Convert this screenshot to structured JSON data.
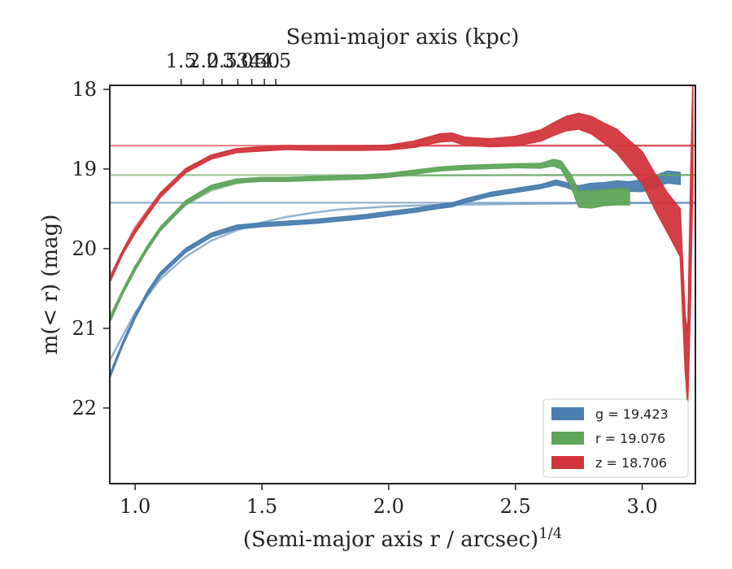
{
  "chart_data": {
    "type": "line",
    "title": "",
    "xlabel": "(Semi-major axis r / arcsec)",
    "xlabel_superscript": "1/4",
    "ylabel": "m(< r) (mag)",
    "top_xlabel": "Semi-major axis (kpc)",
    "xlim": [
      0.9,
      3.21
    ],
    "ylim": [
      22.95,
      17.95
    ],
    "y_inverted": true,
    "x_ticks": [
      "1.0",
      "1.5",
      "2.0",
      "2.5",
      "3.0"
    ],
    "y_ticks": [
      "18",
      "19",
      "20",
      "21",
      "22"
    ],
    "top_ticks": [
      "1.5",
      "2.0",
      "2.5",
      "3.0",
      "3.5",
      "4.0",
      "4.5"
    ],
    "grid": false,
    "legend_position": "lower-right",
    "legend": [
      {
        "label": "g = 19.423",
        "color": "#4a7eb0"
      },
      {
        "label": "r = 19.076",
        "color": "#5fa55a"
      },
      {
        "label": "z = 18.706",
        "color": "#d2363c"
      }
    ],
    "series": [
      {
        "name": "g = 19.423",
        "color": "#4a7eb0",
        "asymptote": 19.423,
        "band": {
          "x": [
            0.9,
            0.95,
            1.0,
            1.05,
            1.1,
            1.2,
            1.3,
            1.4,
            1.5,
            1.6,
            1.7,
            1.8,
            1.9,
            2.0,
            2.1,
            2.2,
            2.25,
            2.3,
            2.4,
            2.5,
            2.6,
            2.66,
            2.7,
            2.75,
            2.8,
            2.85,
            2.9,
            2.95,
            3.0,
            3.05,
            3.1,
            3.15
          ],
          "y": [
            21.6,
            21.2,
            20.85,
            20.55,
            20.32,
            20.02,
            19.83,
            19.73,
            19.7,
            19.68,
            19.66,
            19.63,
            19.6,
            19.56,
            19.52,
            19.47,
            19.45,
            19.4,
            19.32,
            19.27,
            19.22,
            19.17,
            19.2,
            19.25,
            19.23,
            19.22,
            19.2,
            19.22,
            19.21,
            19.16,
            19.1,
            19.12
          ],
          "width": [
            0.05,
            0.05,
            0.05,
            0.05,
            0.05,
            0.05,
            0.05,
            0.05,
            0.05,
            0.05,
            0.05,
            0.05,
            0.05,
            0.05,
            0.05,
            0.05,
            0.05,
            0.05,
            0.05,
            0.05,
            0.05,
            0.06,
            0.06,
            0.08,
            0.1,
            0.1,
            0.1,
            0.12,
            0.15,
            0.15,
            0.15,
            0.15
          ]
        },
        "model": {
          "x": [
            0.9,
            1.0,
            1.1,
            1.2,
            1.3,
            1.4,
            1.5,
            1.6,
            1.7,
            1.8,
            2.0,
            2.2,
            2.5,
            2.8,
            3.0,
            3.21
          ],
          "y": [
            21.4,
            20.8,
            20.38,
            20.1,
            19.9,
            19.77,
            19.67,
            19.6,
            19.55,
            19.51,
            19.47,
            19.45,
            19.44,
            19.43,
            19.427,
            19.424
          ]
        }
      },
      {
        "name": "r = 19.076",
        "color": "#5fa55a",
        "asymptote": 19.076,
        "band": {
          "x": [
            0.9,
            0.95,
            1.0,
            1.05,
            1.1,
            1.2,
            1.3,
            1.4,
            1.5,
            1.6,
            1.7,
            1.8,
            1.9,
            2.0,
            2.1,
            2.2,
            2.3,
            2.4,
            2.5,
            2.6,
            2.65,
            2.68,
            2.72,
            2.75,
            2.8,
            2.85,
            2.9,
            2.95
          ],
          "y": [
            20.9,
            20.55,
            20.25,
            19.98,
            19.75,
            19.42,
            19.23,
            19.15,
            19.13,
            19.13,
            19.12,
            19.11,
            19.1,
            19.08,
            19.04,
            19.0,
            18.98,
            18.97,
            18.96,
            18.96,
            18.92,
            18.95,
            19.15,
            19.38,
            19.38,
            19.36,
            19.35,
            19.35
          ],
          "width": [
            0.05,
            0.05,
            0.05,
            0.05,
            0.05,
            0.05,
            0.05,
            0.05,
            0.05,
            0.05,
            0.05,
            0.05,
            0.05,
            0.05,
            0.05,
            0.05,
            0.05,
            0.05,
            0.05,
            0.06,
            0.08,
            0.1,
            0.15,
            0.2,
            0.22,
            0.2,
            0.2,
            0.2
          ]
        },
        "model": {
          "x": [
            0.9,
            1.0,
            1.1,
            1.2,
            1.3,
            1.4,
            1.5,
            1.7,
            2.0,
            2.5,
            3.0,
            3.21
          ],
          "y": [
            20.85,
            20.22,
            19.75,
            19.45,
            19.27,
            19.18,
            19.13,
            19.1,
            19.085,
            19.078,
            19.076,
            19.076
          ]
        }
      },
      {
        "name": "z = 18.706",
        "color": "#d2363c",
        "asymptote": 18.706,
        "band": {
          "x": [
            0.9,
            0.95,
            1.0,
            1.05,
            1.1,
            1.2,
            1.3,
            1.4,
            1.5,
            1.6,
            1.7,
            1.8,
            1.9,
            2.0,
            2.1,
            2.2,
            2.25,
            2.3,
            2.4,
            2.5,
            2.6,
            2.65,
            2.7,
            2.75,
            2.8,
            2.85,
            2.9,
            2.95,
            3.0,
            3.05,
            3.1,
            3.15,
            3.17,
            3.18,
            3.19,
            3.2
          ],
          "y": [
            20.4,
            20.05,
            19.78,
            19.55,
            19.33,
            19.02,
            18.85,
            18.77,
            18.75,
            18.73,
            18.74,
            18.74,
            18.74,
            18.73,
            18.69,
            18.61,
            18.6,
            18.65,
            18.67,
            18.65,
            18.58,
            18.5,
            18.43,
            18.4,
            18.45,
            18.55,
            18.65,
            18.82,
            18.98,
            19.28,
            19.55,
            19.8,
            21.2,
            21.5,
            20.0,
            18.5
          ],
          "width": [
            0.05,
            0.05,
            0.05,
            0.05,
            0.05,
            0.05,
            0.05,
            0.05,
            0.05,
            0.05,
            0.05,
            0.05,
            0.05,
            0.06,
            0.08,
            0.1,
            0.1,
            0.1,
            0.1,
            0.12,
            0.14,
            0.16,
            0.18,
            0.2,
            0.22,
            0.25,
            0.3,
            0.35,
            0.4,
            0.45,
            0.5,
            0.6,
            0.7,
            0.9,
            1.5,
            1.3
          ]
        },
        "model": {
          "x": [
            0.9,
            1.0,
            1.1,
            1.2,
            1.3,
            1.4,
            1.5,
            1.7,
            2.0,
            2.5,
            3.0,
            3.21
          ],
          "y": [
            20.35,
            19.73,
            19.3,
            19.0,
            18.83,
            18.75,
            18.72,
            18.71,
            18.707,
            18.706,
            18.706,
            18.706
          ]
        }
      }
    ]
  }
}
